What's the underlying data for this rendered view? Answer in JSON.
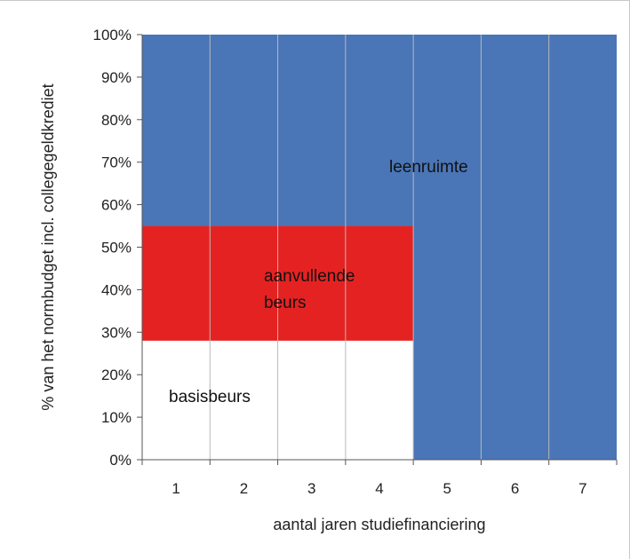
{
  "chart_data": {
    "type": "area",
    "title": "",
    "xlabel": "aantal jaren studiefinanciering",
    "ylabel": "% van het normbudget incl. collegegeldkrediet",
    "x_categories": [
      "1",
      "2",
      "3",
      "4",
      "5",
      "6",
      "7"
    ],
    "y_ticks": [
      "0%",
      "10%",
      "20%",
      "30%",
      "40%",
      "50%",
      "60%",
      "70%",
      "80%",
      "90%",
      "100%"
    ],
    "ylim": [
      0,
      100
    ],
    "regions": [
      {
        "name": "basisbeurs",
        "label_lines": [
          "basisbeurs"
        ],
        "color": "#ffffff",
        "x_from": 1,
        "x_to": 4,
        "y_from": 0,
        "y_to": 28
      },
      {
        "name": "aanvullende beurs",
        "label_lines": [
          "aanvullende",
          "beurs"
        ],
        "color": "#e52222",
        "x_from": 1,
        "x_to": 4,
        "y_from": 28,
        "y_to": 55
      },
      {
        "name": "leenruimte",
        "label_lines": [
          "leenruimte"
        ],
        "color": "#4a75b6",
        "x_from": 1,
        "x_to": 4,
        "y_from": 55,
        "y_to": 100
      },
      {
        "name": "leenruimte-extended",
        "label_lines": [],
        "color": "#4a75b6",
        "x_from": 5,
        "x_to": 7,
        "y_from": 0,
        "y_to": 100
      }
    ],
    "gridlines": "vertical",
    "legend": "none"
  }
}
